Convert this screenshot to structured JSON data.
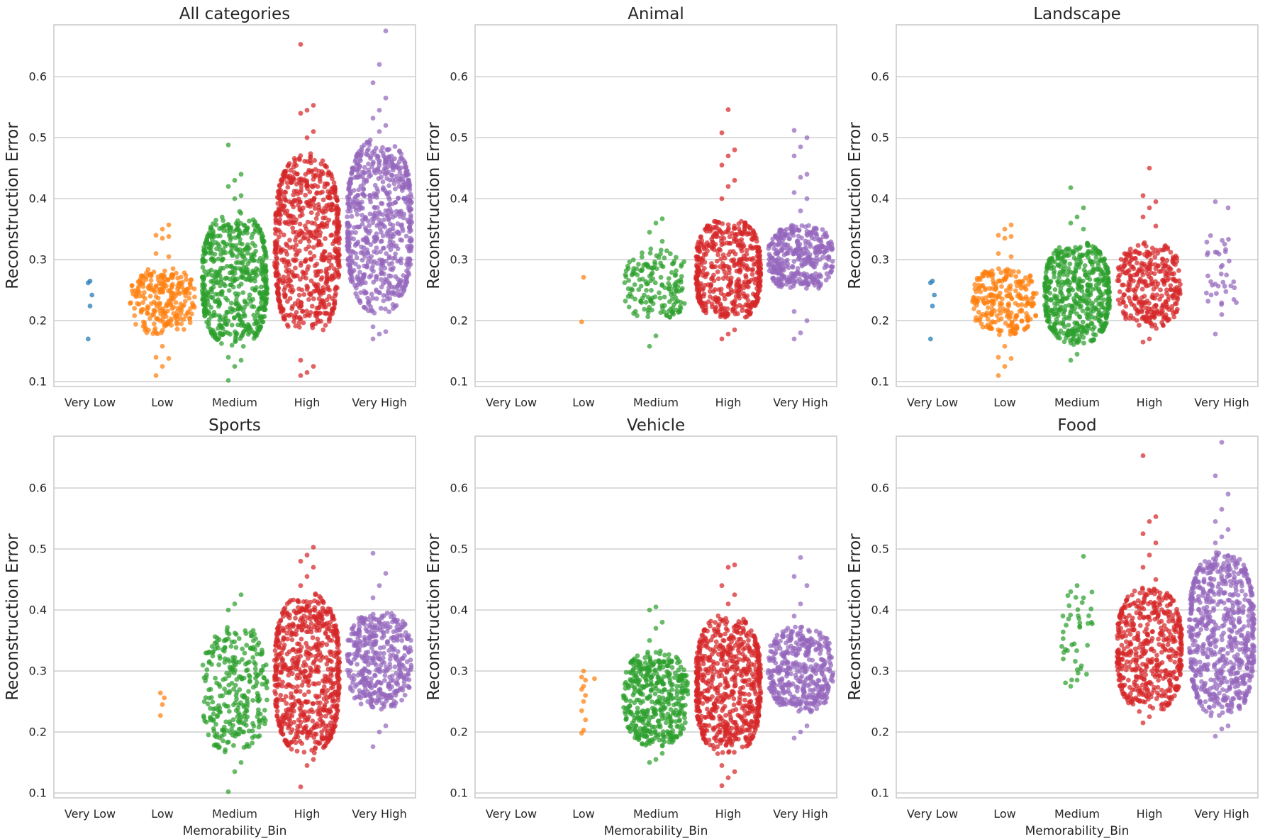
{
  "chart_data": [
    {
      "type": "swarm",
      "title": "All categories",
      "xlabel": "",
      "ylabel": "Reconstruction Error",
      "categories": [
        "Very Low",
        "Low",
        "Medium",
        "High",
        "Very High"
      ],
      "yticks": [
        0.1,
        0.2,
        0.3,
        0.4,
        0.5,
        0.6
      ],
      "ylim": [
        0.092,
        0.685
      ],
      "grid": "horizontal",
      "series": [
        {
          "category": "Very Low",
          "color": "#1f77b4",
          "count": 5,
          "core_range": [
            0.17,
            0.265
          ],
          "min": 0.17,
          "max": 0.265,
          "outliers": [
            0.17,
            0.224,
            0.242,
            0.262,
            0.265
          ]
        },
        {
          "category": "Low",
          "color": "#ff7f0e",
          "count": 260,
          "core_range": [
            0.175,
            0.29
          ],
          "min": 0.11,
          "max": 0.357,
          "outliers": [
            0.11,
            0.125,
            0.138,
            0.14,
            0.158,
            0.305,
            0.31,
            0.335,
            0.338,
            0.34,
            0.35,
            0.357
          ]
        },
        {
          "category": "Medium",
          "color": "#2ca02c",
          "count": 600,
          "core_range": [
            0.155,
            0.38
          ],
          "min": 0.102,
          "max": 0.488,
          "outliers": [
            0.102,
            0.125,
            0.135,
            0.14,
            0.4,
            0.405,
            0.42,
            0.43,
            0.44,
            0.488
          ]
        },
        {
          "category": "High",
          "color": "#d62728",
          "count": 1100,
          "core_range": [
            0.17,
            0.475
          ],
          "min": 0.11,
          "max": 0.653,
          "outliers": [
            0.11,
            0.115,
            0.125,
            0.135,
            0.5,
            0.51,
            0.54,
            0.545,
            0.553,
            0.653
          ]
        },
        {
          "category": "Very High",
          "color": "#9467bd",
          "count": 1200,
          "core_range": [
            0.21,
            0.5
          ],
          "min": 0.17,
          "max": 0.675,
          "outliers": [
            0.17,
            0.178,
            0.182,
            0.19,
            0.51,
            0.52,
            0.532,
            0.545,
            0.565,
            0.59,
            0.62,
            0.675
          ]
        }
      ]
    },
    {
      "type": "swarm",
      "title": "Animal",
      "xlabel": "",
      "ylabel": "Reconstruction Error",
      "categories": [
        "Very Low",
        "Low",
        "Medium",
        "High",
        "Very High"
      ],
      "yticks": [
        0.1,
        0.2,
        0.3,
        0.4,
        0.5,
        0.6
      ],
      "ylim": [
        0.092,
        0.685
      ],
      "grid": "horizontal",
      "series": [
        {
          "category": "Very Low",
          "color": "#1f77b4",
          "count": 0,
          "core_range": [
            0,
            0
          ],
          "min": 0,
          "max": 0,
          "outliers": []
        },
        {
          "category": "Low",
          "color": "#ff7f0e",
          "count": 2,
          "core_range": [
            0.198,
            0.271
          ],
          "min": 0.198,
          "max": 0.271,
          "outliers": [
            0.198,
            0.271
          ]
        },
        {
          "category": "Medium",
          "color": "#2ca02c",
          "count": 170,
          "core_range": [
            0.2,
            0.32
          ],
          "min": 0.158,
          "max": 0.367,
          "outliers": [
            0.158,
            0.175,
            0.33,
            0.345,
            0.36,
            0.367
          ]
        },
        {
          "category": "High",
          "color": "#d62728",
          "count": 520,
          "core_range": [
            0.195,
            0.37
          ],
          "min": 0.17,
          "max": 0.546,
          "outliers": [
            0.17,
            0.178,
            0.185,
            0.4,
            0.42,
            0.43,
            0.455,
            0.47,
            0.48,
            0.508,
            0.546
          ]
        },
        {
          "category": "Very High",
          "color": "#9467bd",
          "count": 380,
          "core_range": [
            0.245,
            0.36
          ],
          "min": 0.17,
          "max": 0.512,
          "outliers": [
            0.17,
            0.18,
            0.2,
            0.215,
            0.38,
            0.4,
            0.41,
            0.435,
            0.44,
            0.47,
            0.485,
            0.5,
            0.512
          ]
        }
      ]
    },
    {
      "type": "swarm",
      "title": "Landscape",
      "xlabel": "",
      "ylabel": "Reconstruction Error",
      "categories": [
        "Very Low",
        "Low",
        "Medium",
        "High",
        "Very High"
      ],
      "yticks": [
        0.1,
        0.2,
        0.3,
        0.4,
        0.5,
        0.6
      ],
      "ylim": [
        0.092,
        0.685
      ],
      "grid": "horizontal",
      "series": [
        {
          "category": "Very Low",
          "color": "#1f77b4",
          "count": 5,
          "core_range": [
            0.17,
            0.265
          ],
          "min": 0.17,
          "max": 0.265,
          "outliers": [
            0.17,
            0.224,
            0.242,
            0.262,
            0.265
          ]
        },
        {
          "category": "Low",
          "color": "#ff7f0e",
          "count": 260,
          "core_range": [
            0.175,
            0.29
          ],
          "min": 0.11,
          "max": 0.357,
          "outliers": [
            0.11,
            0.125,
            0.138,
            0.14,
            0.158,
            0.305,
            0.31,
            0.335,
            0.338,
            0.34,
            0.35,
            0.357
          ]
        },
        {
          "category": "Medium",
          "color": "#2ca02c",
          "count": 560,
          "core_range": [
            0.16,
            0.33
          ],
          "min": 0.135,
          "max": 0.418,
          "outliers": [
            0.135,
            0.145,
            0.35,
            0.36,
            0.37,
            0.385,
            0.418
          ]
        },
        {
          "category": "High",
          "color": "#d62728",
          "count": 330,
          "core_range": [
            0.185,
            0.33
          ],
          "min": 0.165,
          "max": 0.45,
          "outliers": [
            0.165,
            0.17,
            0.355,
            0.37,
            0.385,
            0.395,
            0.405,
            0.45
          ]
        },
        {
          "category": "Very High",
          "color": "#9467bd",
          "count": 40,
          "core_range": [
            0.225,
            0.35
          ],
          "min": 0.178,
          "max": 0.395,
          "outliers": [
            0.178,
            0.21,
            0.385,
            0.395
          ]
        }
      ]
    },
    {
      "type": "swarm",
      "title": "Sports",
      "xlabel": "Memorability_Bin",
      "ylabel": "Reconstruction Error",
      "categories": [
        "Very Low",
        "Low",
        "Medium",
        "High",
        "Very High"
      ],
      "yticks": [
        0.1,
        0.2,
        0.3,
        0.4,
        0.5,
        0.6
      ],
      "ylim": [
        0.092,
        0.685
      ],
      "grid": "horizontal",
      "series": [
        {
          "category": "Very Low",
          "color": "#1f77b4",
          "count": 0,
          "core_range": [
            0,
            0
          ],
          "min": 0,
          "max": 0,
          "outliers": []
        },
        {
          "category": "Low",
          "color": "#ff7f0e",
          "count": 4,
          "core_range": [
            0.227,
            0.264
          ],
          "min": 0.227,
          "max": 0.264,
          "outliers": [
            0.227,
            0.245,
            0.256,
            0.264
          ]
        },
        {
          "category": "Medium",
          "color": "#2ca02c",
          "count": 300,
          "core_range": [
            0.16,
            0.38
          ],
          "min": 0.102,
          "max": 0.425,
          "outliers": [
            0.102,
            0.135,
            0.15,
            0.4,
            0.41,
            0.425
          ]
        },
        {
          "category": "High",
          "color": "#d62728",
          "count": 950,
          "core_range": [
            0.16,
            0.43
          ],
          "min": 0.11,
          "max": 0.503,
          "outliers": [
            0.11,
            0.145,
            0.155,
            0.44,
            0.455,
            0.47,
            0.48,
            0.49,
            0.503
          ]
        },
        {
          "category": "Very High",
          "color": "#9467bd",
          "count": 420,
          "core_range": [
            0.235,
            0.4
          ],
          "min": 0.176,
          "max": 0.493,
          "outliers": [
            0.176,
            0.2,
            0.21,
            0.42,
            0.44,
            0.46,
            0.493
          ]
        }
      ]
    },
    {
      "type": "swarm",
      "title": "Vehicle",
      "xlabel": "Memorability_Bin",
      "ylabel": "Reconstruction Error",
      "categories": [
        "Very Low",
        "Low",
        "Medium",
        "High",
        "Very High"
      ],
      "yticks": [
        0.1,
        0.2,
        0.3,
        0.4,
        0.5,
        0.6
      ],
      "ylim": [
        0.092,
        0.685
      ],
      "grid": "horizontal",
      "series": [
        {
          "category": "Very Low",
          "color": "#1f77b4",
          "count": 0,
          "core_range": [
            0,
            0
          ],
          "min": 0,
          "max": 0,
          "outliers": []
        },
        {
          "category": "Low",
          "color": "#ff7f0e",
          "count": 12,
          "core_range": [
            0.198,
            0.3
          ],
          "min": 0.198,
          "max": 0.3,
          "outliers": [
            0.198,
            0.203,
            0.22,
            0.235,
            0.25,
            0.26,
            0.27,
            0.275,
            0.285,
            0.29,
            0.3
          ]
        },
        {
          "category": "Medium",
          "color": "#2ca02c",
          "count": 450,
          "core_range": [
            0.175,
            0.335
          ],
          "min": 0.15,
          "max": 0.405,
          "outliers": [
            0.15,
            0.155,
            0.165,
            0.35,
            0.37,
            0.38,
            0.4,
            0.405
          ]
        },
        {
          "category": "High",
          "color": "#d62728",
          "count": 1050,
          "core_range": [
            0.16,
            0.395
          ],
          "min": 0.112,
          "max": 0.474,
          "outliers": [
            0.112,
            0.125,
            0.135,
            0.145,
            0.41,
            0.425,
            0.44,
            0.47,
            0.474
          ]
        },
        {
          "category": "Very High",
          "color": "#9467bd",
          "count": 420,
          "core_range": [
            0.23,
            0.375
          ],
          "min": 0.19,
          "max": 0.486,
          "outliers": [
            0.19,
            0.2,
            0.21,
            0.39,
            0.41,
            0.44,
            0.455,
            0.486
          ]
        }
      ]
    },
    {
      "type": "swarm",
      "title": "Food",
      "xlabel": "Memorability_Bin",
      "ylabel": "Reconstruction Error",
      "categories": [
        "Very Low",
        "Low",
        "Medium",
        "High",
        "Very High"
      ],
      "yticks": [
        0.1,
        0.2,
        0.3,
        0.4,
        0.5,
        0.6
      ],
      "ylim": [
        0.092,
        0.685
      ],
      "grid": "horizontal",
      "series": [
        {
          "category": "Very Low",
          "color": "#1f77b4",
          "count": 0,
          "core_range": [
            0,
            0
          ],
          "min": 0,
          "max": 0,
          "outliers": []
        },
        {
          "category": "Low",
          "color": "#ff7f0e",
          "count": 0,
          "core_range": [
            0,
            0
          ],
          "min": 0,
          "max": 0,
          "outliers": []
        },
        {
          "category": "Medium",
          "color": "#2ca02c",
          "count": 45,
          "core_range": [
            0.275,
            0.44
          ],
          "min": 0.275,
          "max": 0.488,
          "outliers": [
            0.275,
            0.285,
            0.42,
            0.43,
            0.44,
            0.488
          ]
        },
        {
          "category": "High",
          "color": "#d62728",
          "count": 520,
          "core_range": [
            0.23,
            0.44
          ],
          "min": 0.215,
          "max": 0.653,
          "outliers": [
            0.215,
            0.225,
            0.45,
            0.47,
            0.49,
            0.51,
            0.525,
            0.545,
            0.553,
            0.653
          ]
        },
        {
          "category": "Very High",
          "color": "#9467bd",
          "count": 1000,
          "core_range": [
            0.22,
            0.5
          ],
          "min": 0.193,
          "max": 0.675,
          "outliers": [
            0.193,
            0.205,
            0.21,
            0.51,
            0.52,
            0.532,
            0.545,
            0.565,
            0.59,
            0.62,
            0.675
          ]
        }
      ]
    }
  ]
}
